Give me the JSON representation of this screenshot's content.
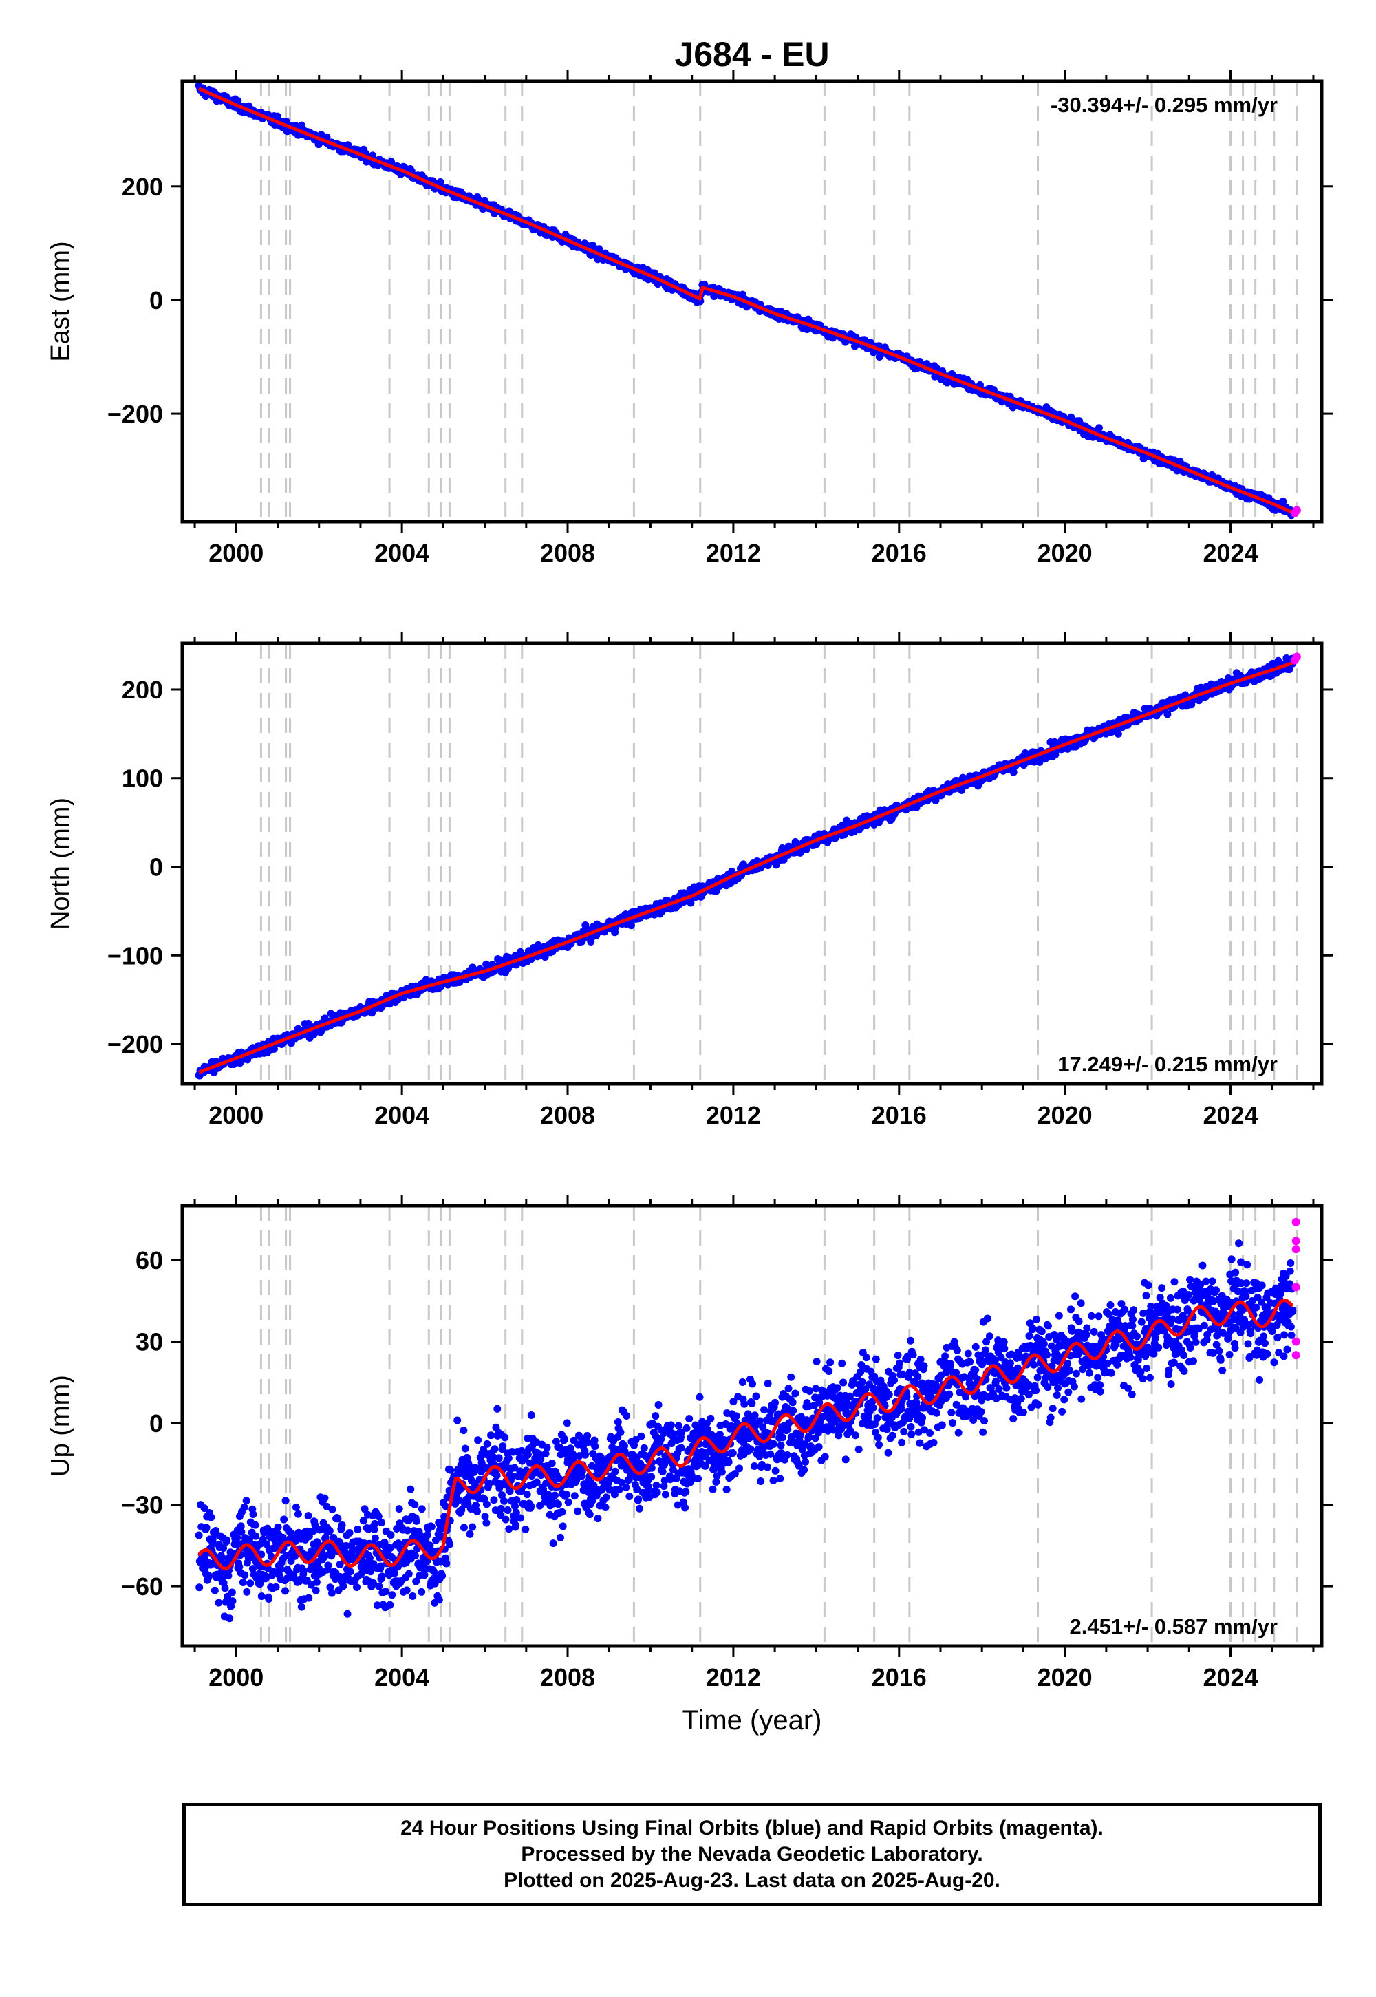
{
  "title": "J684 - EU",
  "xlabel": "Time (year)",
  "footer": {
    "line1": "24 Hour Positions Using Final Orbits (blue) and Rapid Orbits (magenta).",
    "line2": "Processed by the Nevada Geodetic Laboratory.",
    "line3": "Plotted on 2025-Aug-23. Last data on 2025-Aug-20."
  },
  "colors": {
    "final_orbits": "#0000ff",
    "rapid_orbits": "#ff00ff",
    "model_fit": "#ff0000",
    "event_lines": "#c8c8c8"
  },
  "chart_data": [
    {
      "type": "scatter",
      "ylabel": "East (mm)",
      "rate_label": "-30.394+/- 0.295 mm/yr",
      "rate_label_position": "top-right",
      "xlim": [
        1998.7,
        2026.2
      ],
      "ylim": [
        -390,
        385
      ],
      "xticks": [
        2000,
        2004,
        2008,
        2012,
        2016,
        2020,
        2024
      ],
      "yticks": [
        -200,
        0,
        200
      ],
      "event_lines": [
        2000.6,
        2000.8,
        2001.2,
        2001.3,
        2003.7,
        2004.65,
        2004.95,
        2005.15,
        2006.5,
        2006.9,
        2009.6,
        2011.2,
        2014.2,
        2015.4,
        2016.25,
        2019.35,
        2022.1,
        2024.0,
        2024.3,
        2024.6,
        2025.05,
        2025.6
      ],
      "series": [
        {
          "name": "Final Orbits",
          "x": [
            1999.1,
            2000.0,
            2001.0,
            2002.0,
            2003.0,
            2003.7,
            2004.0,
            2005.0,
            2006.0,
            2007.0,
            2008.0,
            2009.0,
            2010.0,
            2011.2,
            2011.25,
            2012.0,
            2013.0,
            2014.0,
            2015.0,
            2016.0,
            2017.0,
            2018.0,
            2019.0,
            2020.0,
            2021.0,
            2022.0,
            2023.0,
            2024.0,
            2025.0,
            2025.5
          ],
          "y": [
            372,
            343,
            313,
            284,
            256,
            236,
            228,
            195,
            166,
            137,
            105,
            73,
            43,
            2,
            22,
            6,
            -24,
            -48,
            -73,
            -100,
            -130,
            -158,
            -185,
            -212,
            -243,
            -270,
            -300,
            -330,
            -358,
            -374
          ]
        },
        {
          "name": "Rapid Orbits",
          "x": [
            2025.55,
            2025.6
          ],
          "y": [
            -375,
            -370
          ]
        }
      ]
    },
    {
      "type": "scatter",
      "ylabel": "North (mm)",
      "rate_label": "17.249+/- 0.215 mm/yr",
      "rate_label_position": "bottom-right",
      "xlim": [
        1998.7,
        2026.2
      ],
      "ylim": [
        -245,
        252
      ],
      "xticks": [
        2000,
        2004,
        2008,
        2012,
        2016,
        2020,
        2024
      ],
      "yticks": [
        -200,
        -100,
        0,
        100,
        200
      ],
      "event_lines": [
        2000.6,
        2000.8,
        2001.2,
        2001.3,
        2003.7,
        2004.65,
        2004.95,
        2005.15,
        2006.5,
        2006.9,
        2009.6,
        2011.2,
        2014.2,
        2015.4,
        2016.25,
        2019.35,
        2022.1,
        2024.0,
        2024.3,
        2024.6,
        2025.05,
        2025.6
      ],
      "series": [
        {
          "name": "Final Orbits",
          "x": [
            1999.1,
            2000.0,
            2001.0,
            2002.0,
            2003.0,
            2004.0,
            2005.0,
            2006.0,
            2007.0,
            2008.0,
            2009.0,
            2010.0,
            2011.0,
            2012.0,
            2013.0,
            2014.0,
            2015.0,
            2016.0,
            2017.0,
            2018.0,
            2019.0,
            2020.0,
            2021.0,
            2022.0,
            2023.0,
            2024.0,
            2025.0,
            2025.5
          ],
          "y": [
            -232,
            -216,
            -198,
            -180,
            -163,
            -143,
            -130,
            -118,
            -102,
            -85,
            -67,
            -50,
            -33,
            -10,
            10,
            30,
            47,
            66,
            85,
            102,
            120,
            138,
            155,
            172,
            190,
            207,
            222,
            230
          ]
        },
        {
          "name": "Rapid Orbits",
          "x": [
            2025.55,
            2025.6
          ],
          "y": [
            233,
            237
          ]
        }
      ]
    },
    {
      "type": "scatter",
      "ylabel": "Up (mm)",
      "rate_label": "2.451+/- 0.587 mm/yr",
      "rate_label_position": "bottom-right",
      "xlim": [
        1998.7,
        2026.2
      ],
      "ylim": [
        -82,
        80
      ],
      "xticks": [
        2000,
        2004,
        2008,
        2012,
        2016,
        2020,
        2024
      ],
      "yticks": [
        -60,
        -30,
        0,
        30,
        60
      ],
      "event_lines": [
        2000.6,
        2000.8,
        2001.2,
        2001.3,
        2003.7,
        2004.65,
        2004.95,
        2005.15,
        2006.5,
        2006.9,
        2009.6,
        2011.2,
        2014.2,
        2015.4,
        2016.25,
        2019.35,
        2022.1,
        2024.0,
        2024.3,
        2024.6,
        2025.05,
        2025.6
      ],
      "series": [
        {
          "name": "Final Orbits",
          "x": [
            1999.1,
            2000.0,
            2001.0,
            2002.0,
            2003.0,
            2004.0,
            2005.0,
            2005.3,
            2006.0,
            2007.0,
            2008.0,
            2009.0,
            2010.0,
            2011.0,
            2012.0,
            2013.0,
            2014.0,
            2015.0,
            2016.0,
            2017.0,
            2018.0,
            2019.0,
            2020.0,
            2021.0,
            2022.0,
            2023.0,
            2024.0,
            2025.0,
            2025.5
          ],
          "y": [
            -51,
            -49,
            -48,
            -47,
            -49,
            -48,
            -45,
            -24,
            -20,
            -20,
            -19,
            -16,
            -14,
            -11,
            -5,
            -2,
            2,
            6,
            9,
            12,
            16,
            20,
            24,
            29,
            32,
            38,
            41,
            39,
            43
          ]
        },
        {
          "name": "Rapid Orbits",
          "x": [
            2025.58,
            2025.58,
            2025.58,
            2025.58,
            2025.58,
            2025.58
          ],
          "y": [
            74,
            67,
            64,
            50,
            30,
            25
          ]
        }
      ]
    }
  ]
}
